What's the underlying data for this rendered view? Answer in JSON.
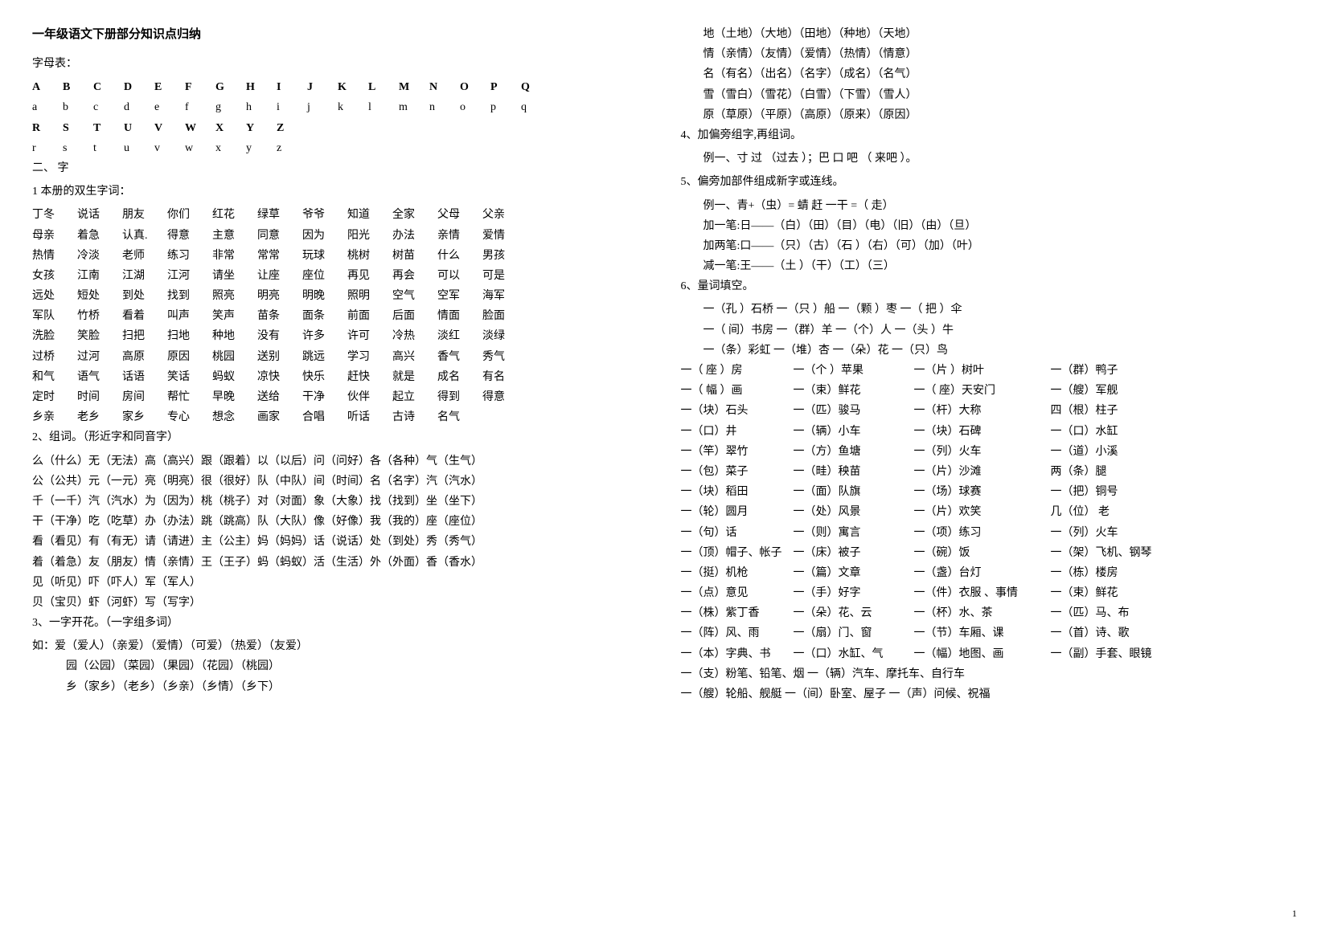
{
  "title": "一年级语文下册部分知识点归纳",
  "alphabet_label": "字母表：",
  "alphabet_rows": [
    [
      "A",
      "B",
      "C",
      "D",
      "E",
      "F",
      "G",
      "H",
      "I",
      "J",
      "K",
      "L",
      "M",
      "N",
      "O",
      "P",
      "Q"
    ],
    [
      "a",
      "b",
      "c",
      "d",
      "e",
      "f",
      "g",
      "h",
      "i",
      "j",
      "k",
      "l",
      "m",
      "n",
      "o",
      "p",
      "q"
    ],
    [
      "R",
      "S",
      "T",
      "U",
      "V",
      "W",
      "X",
      "Y",
      "Z"
    ],
    [
      "r",
      "s",
      "t",
      "u",
      "v",
      "w",
      "x",
      "y",
      "z"
    ]
  ],
  "section2_label": "二、 字",
  "twin_words_label": "1 本册的双生字词：",
  "twin_words": [
    [
      "丁冬",
      "说话",
      "朋友",
      "你们",
      "红花",
      "绿草",
      "爷爷",
      "知道",
      "全家",
      "父母",
      "父亲"
    ],
    [
      "母亲",
      "着急",
      "认真.",
      "得意",
      "主意",
      "同意",
      "因为",
      "阳光",
      "办法",
      "亲情",
      "爱情"
    ],
    [
      "热情",
      "冷淡",
      "老师",
      "练习",
      "非常",
      "常常",
      "玩球",
      "桃树",
      "树苗",
      "什么",
      "男孩"
    ],
    [
      "女孩",
      "江南",
      "江湖",
      "江河",
      "请坐",
      "让座",
      "座位",
      "再见",
      "再会",
      "可以",
      "可是"
    ],
    [
      "远处",
      "短处",
      "到处",
      "找到",
      "照亮",
      "明亮",
      "明晚",
      "照明",
      "空气",
      "空军",
      "海军"
    ],
    [
      "军队",
      "竹桥",
      "看着",
      "叫声",
      "笑声",
      "苗条",
      "面条",
      "前面",
      "后面",
      "情面",
      "脸面"
    ],
    [
      "洗脸",
      "笑脸",
      "扫把",
      "扫地",
      "种地",
      "没有",
      "许多",
      "许可",
      "冷热",
      "淡红",
      "淡绿"
    ],
    [
      "过桥",
      "过河",
      "高原",
      "原因",
      "桃园",
      "送别",
      "跳远",
      "学习",
      "高兴",
      "香气",
      "秀气"
    ],
    [
      "和气",
      "语气",
      "话语",
      "笑话",
      "蚂蚁",
      "凉快",
      "快乐",
      "赶快",
      "就是",
      "成名",
      "有名"
    ],
    [
      "定时",
      "时间",
      "房间",
      "帮忙",
      "早晚",
      "送给",
      "干净",
      "伙伴",
      "起立",
      "得到",
      "得意"
    ],
    [
      "乡亲",
      "老乡",
      "家乡",
      "专心",
      "想念",
      "画家",
      "合唱",
      "听话",
      "古诗",
      "名气",
      ""
    ]
  ],
  "section2_2_label": "2、组词。（形近字和同音字）",
  "form_words": [
    "么（什么）无（无法）高（高兴）跟（跟着）以（以后）问（问好）各（各种）气（生气）",
    "公（公共）元（一元）亮（明亮）很（很好）队（中队）间（时间）名（名字）汽（汽水）",
    "千（一千）汽（汽水）为（因为）桃（桃子）对（对面）象（大象）找（找到）坐（坐下）",
    "干（干净）吃（吃草）办（办法）跳（跳高）队（大队）像（好像）我（我的）座（座位）",
    "看（看见）有（有无）请（请进）主（公主）妈（妈妈）话（说话）处（到处）秀（秀气）",
    "着（着急）友（朋友）情（亲情）王（王子）蚂（蚂蚁）活（生活）外（外面）香（香水）",
    "见（听见）吓（吓人）军（军人）",
    "贝（宝贝）虾（河虾）写（写字）"
  ],
  "section3_label": "3、一字开花。（一字组多词）",
  "one_char": [
    "如：爱（爱人）（亲爱）（爱情）（可爱）（热爱）（友爱）",
    "园（公园）（菜园）（果园）（花园）（桃园）",
    "乡（家乡）（老乡）（乡亲）（乡情）（乡下）"
  ],
  "right_top": [
    "地（土地）（大地）（田地）（种地）（天地）",
    "情（亲情）（友情）（爱情）（热情）（情意）",
    "名（有名）（出名）（名字）（成名）（名气）",
    "雪（雪白）（雪花）（白雪）（下雪）（雪人）",
    "原（草原）（平原）（高原）（原来）（原因）"
  ],
  "section4_label": "4、加偏旁组字,再组词。",
  "section4_example": "例一、寸  过 （过去 ）；巴  口  吧  （ 来吧 ）。",
  "section5_label": "5、偏旁加部件组成新字或连线。",
  "section5_lines": [
    "例一、青+（虫）= 蜻     赶 一干 =（ 走）",
    "加一笔:日——（白）（田）（目）（电）（旧）（由）（旦）",
    "加两笔:口——（只）（古）（石 ）（右）（可）（加）（叶）",
    "减一笔:王——（土 ）（干）（工）（三）"
  ],
  "section6_label": "6、量词填空。",
  "section6_lines": [
    "一（孔 ）石桥   一（只 ）船   一（颗 ）枣   一（  把  ）伞",
    "一（  间）书房  一（群）羊   一（个）人   一（头  ）牛",
    "一（条）彩虹   一（堆）杏 一（朵）花  一（只）鸟"
  ],
  "measure_rows": [
    [
      "一（  座  ）房",
      "一（个  ）苹果",
      "一（片  ）树叶",
      "一（群）鸭子"
    ],
    [
      "一（  幅  ）画",
      "一（束）鲜花",
      "一（  座）天安门",
      "一（艘）军舰"
    ],
    [
      "一（块）石头",
      "一（匹）骏马",
      "一（杆）大称",
      "四（根）柱子"
    ],
    [
      "一（口）井",
      "一（辆）小车",
      "一（块）石碑",
      "一（口）水缸"
    ],
    [
      "一（竿）翠竹",
      "一（方）鱼塘",
      "一（列）火车",
      "一（道）小溪"
    ],
    [
      "一（包）菜子",
      "一（畦）秧苗",
      "一（片）沙滩",
      "两（条）腿"
    ],
    [
      "一（块）稻田",
      "一（面）队旗",
      "一（场）球赛",
      "一（把）铜号"
    ],
    [
      "一（轮）圆月",
      "一（处）风景",
      "一（片）欢笑",
      "几（位） 老"
    ],
    [
      "一（句）话",
      "一（则）寓言",
      "一（项）练习",
      "一（列）火车"
    ],
    [
      "一（顶）帽子、帐子",
      "一（床）被子",
      "一（碗）饭",
      "一（架）飞机、钢琴"
    ],
    [
      "一（挺）机枪",
      "一（篇）文章",
      "一（盏）台灯",
      "一（栋）楼房"
    ],
    [
      "一（点）意见",
      "一（手）好字",
      "一（件）衣服 、事情",
      "一（束）鲜花"
    ],
    [
      "一（株）紫丁香",
      "一（朵）花、云",
      "一（杯）水、茶",
      "一（匹）马、布"
    ],
    [
      "一（阵）风、雨",
      "一（扇）门、窗",
      "一（节）车厢、课",
      "一（首）诗、歌"
    ],
    [
      "一（本）字典、书",
      "一（口）水缸、气",
      "一（幅）地图、画",
      "一（副）手套、眼镜"
    ]
  ],
  "measure_bottom": [
    "一（支）粉笔、铅笔、烟   一（辆）汽车、摩托车、自行车",
    "一（艘）轮船、舰艇     一（间）卧室、屋子     一（声）问候、祝福"
  ],
  "page_number": "1"
}
